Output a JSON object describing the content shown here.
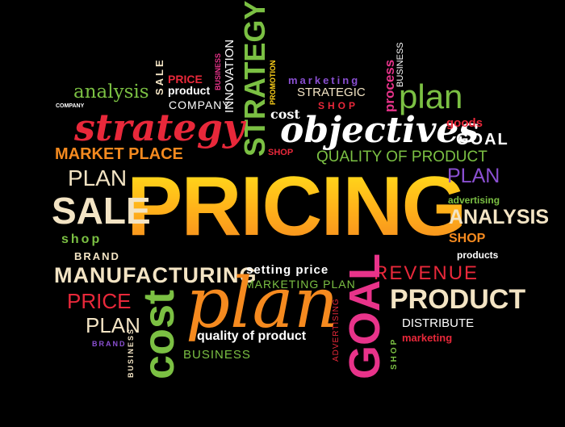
{
  "colors": {
    "background": "#000000",
    "red": "#e8283a",
    "orange": "#f58a1f",
    "yellow": "#ffd21a",
    "green": "#7bc043",
    "pink": "#e8338a",
    "purple": "#8a4fd1",
    "cream": "#f3e4c4",
    "white": "#ffffff"
  },
  "words": {
    "pricing": "PRICING",
    "objectives": "objectives",
    "strategy_script": "strategy",
    "strategy_vertical": "STRATEGY",
    "plan_big": "plan",
    "plan_top_right": "plan",
    "plan_right_small": "PLAN",
    "plan_left": "PLAN",
    "plan_lower_left": "PLAN",
    "sale": "SALE",
    "sale_vertical": "SALE",
    "cost_vertical": "cost",
    "goal_vertical": "GOAL",
    "goal_right": "GOAL",
    "analysis_top": "analysis",
    "analysis_right": "ANALYSIS",
    "market_place": "MARKET PLACE",
    "company_small": "COMPANY",
    "company": "COMPANY",
    "price_top": "PRICE",
    "product_top": "product",
    "innovation": "INNOVATION",
    "business_top_vertical": "BUSINESS",
    "promotion": "PROMOTION",
    "marketing_top": "marketing",
    "strategic": "STRATEGIC",
    "shop_top": "SHOP",
    "process": "process",
    "business_right_vertical": "BUSINESS",
    "cost_small": "cost",
    "shop_small": "SHOP",
    "goods": "goods",
    "quality_of_product_caps": "QUALITY OF PRODUCT",
    "advertising_right": "advertising",
    "shop_right": "SHOP",
    "products": "products",
    "shop_left": "shop",
    "brand_left": "BRAND",
    "manufacturing": "MANUFACTURING",
    "setting_price": "setting price",
    "marketing_plan": "MARKETING PLAN",
    "revenue": "REVENUE",
    "price_left": "PRICE",
    "product_right": "PRODUCT",
    "distribute": "DISTRIBUTE",
    "marketing_right": "marketing",
    "brand_small": "BRAND",
    "business_bottom_vertical": "BUSINESS",
    "quality_of_product": "quality of product",
    "business_bottom": "BUSINESS",
    "advertising_vertical": "ADVERTISING",
    "shop_vertical": "SHOP"
  }
}
